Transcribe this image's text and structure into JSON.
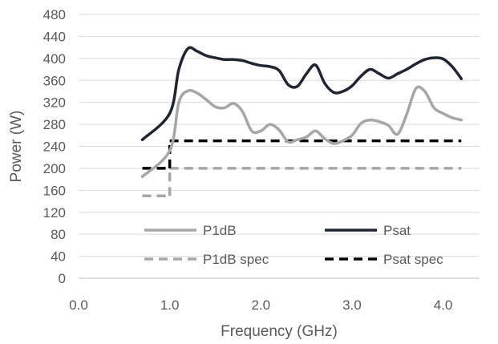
{
  "chart_data": {
    "type": "line",
    "title": "",
    "xlabel": "Frequency (GHz)",
    "ylabel": "Power (W)",
    "xlim": [
      0.0,
      4.4
    ],
    "ylim": [
      0,
      480
    ],
    "x_ticks": [
      0.0,
      1.0,
      2.0,
      3.0,
      4.0
    ],
    "x_tick_labels": [
      "0.0",
      "1.0",
      "2.0",
      "3.0",
      "4.0"
    ],
    "y_ticks": [
      0,
      40,
      80,
      120,
      160,
      200,
      240,
      280,
      320,
      360,
      400,
      440,
      480
    ],
    "y_tick_labels": [
      "0",
      "40",
      "80",
      "120",
      "160",
      "200",
      "240",
      "280",
      "320",
      "360",
      "400",
      "440",
      "480"
    ],
    "grid": "horizontal",
    "legend_position": "bottom-inside",
    "series": [
      {
        "name": "P1dB",
        "color": "#a6a6a6",
        "style": "solid",
        "x": [
          0.7,
          1.0,
          1.1,
          1.2,
          1.3,
          1.4,
          1.5,
          1.6,
          1.7,
          1.8,
          1.9,
          2.0,
          2.1,
          2.2,
          2.3,
          2.4,
          2.5,
          2.6,
          2.7,
          2.8,
          2.9,
          3.0,
          3.1,
          3.2,
          3.3,
          3.4,
          3.5,
          3.6,
          3.7,
          3.8,
          3.9,
          4.0,
          4.1,
          4.2
        ],
        "y": [
          185,
          232,
          320,
          341,
          337,
          325,
          312,
          310,
          318,
          303,
          268,
          268,
          280,
          270,
          248,
          252,
          257,
          268,
          254,
          245,
          250,
          260,
          282,
          288,
          285,
          278,
          262,
          298,
          345,
          340,
          310,
          300,
          292,
          288
        ]
      },
      {
        "name": "Psat",
        "color": "#1f2535",
        "style": "solid",
        "x": [
          0.7,
          1.0,
          1.1,
          1.2,
          1.3,
          1.4,
          1.5,
          1.6,
          1.7,
          1.8,
          1.9,
          2.0,
          2.1,
          2.2,
          2.3,
          2.4,
          2.5,
          2.6,
          2.7,
          2.8,
          2.9,
          3.0,
          3.1,
          3.2,
          3.3,
          3.4,
          3.5,
          3.6,
          3.7,
          3.8,
          3.9,
          4.0,
          4.1,
          4.2
        ],
        "y": [
          252,
          300,
          380,
          418,
          413,
          405,
          401,
          398,
          398,
          396,
          391,
          387,
          385,
          378,
          352,
          349,
          372,
          388,
          355,
          338,
          340,
          350,
          368,
          380,
          372,
          364,
          372,
          380,
          390,
          398,
          401,
          399,
          385,
          363
        ]
      },
      {
        "name": "P1dB spec",
        "color": "#a6a6a6",
        "style": "dashed",
        "segments": [
          {
            "x": [
              0.7,
              1.0
            ],
            "y": [
              150,
              150
            ]
          },
          {
            "x": [
              1.0,
              1.0
            ],
            "y": [
              150,
              200
            ]
          },
          {
            "x": [
              1.0,
              4.2
            ],
            "y": [
              200,
              200
            ]
          }
        ]
      },
      {
        "name": "Psat spec",
        "color": "#000000",
        "style": "dashed",
        "segments": [
          {
            "x": [
              0.7,
              1.0
            ],
            "y": [
              200,
              200
            ]
          },
          {
            "x": [
              1.0,
              1.0
            ],
            "y": [
              200,
              250
            ]
          },
          {
            "x": [
              1.0,
              4.2
            ],
            "y": [
              250,
              250
            ]
          }
        ]
      }
    ]
  }
}
